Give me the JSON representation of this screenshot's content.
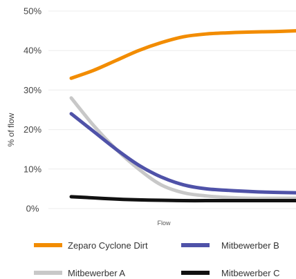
{
  "chart_data": {
    "type": "line",
    "title": "",
    "xlabel": "Flow",
    "ylabel": "% of flow",
    "ylim": [
      0,
      50
    ],
    "yticks": [
      "0%",
      "10%",
      "20%",
      "30%",
      "40%",
      "50%"
    ],
    "ytick_values": [
      0,
      10,
      20,
      30,
      40,
      50
    ],
    "grid": true,
    "legend_position": "bottom",
    "x": [
      0,
      1,
      2,
      3,
      4,
      5,
      6,
      7,
      8,
      9,
      10
    ],
    "series": [
      {
        "name": "Zeparo Cyclone Dirt",
        "color": "#F28C00",
        "values": [
          33,
          35,
          37.5,
          40,
          42,
          43.5,
          44.2,
          44.5,
          44.7,
          44.8,
          45
        ]
      },
      {
        "name": "Mitbewerber A",
        "color": "#C8C8C8",
        "values": [
          28,
          21,
          15,
          10,
          6,
          4,
          3.2,
          2.8,
          2.6,
          2.6,
          2.6
        ]
      },
      {
        "name": "Mitbewerber B",
        "color": "#4F52A8",
        "values": [
          24,
          19.5,
          15,
          11,
          8,
          6,
          5,
          4.6,
          4.3,
          4.1,
          4
        ]
      },
      {
        "name": "Mitbewerber C",
        "color": "#111111",
        "values": [
          3,
          2.7,
          2.4,
          2.2,
          2.1,
          2,
          2,
          2,
          2,
          2,
          2
        ]
      }
    ]
  }
}
